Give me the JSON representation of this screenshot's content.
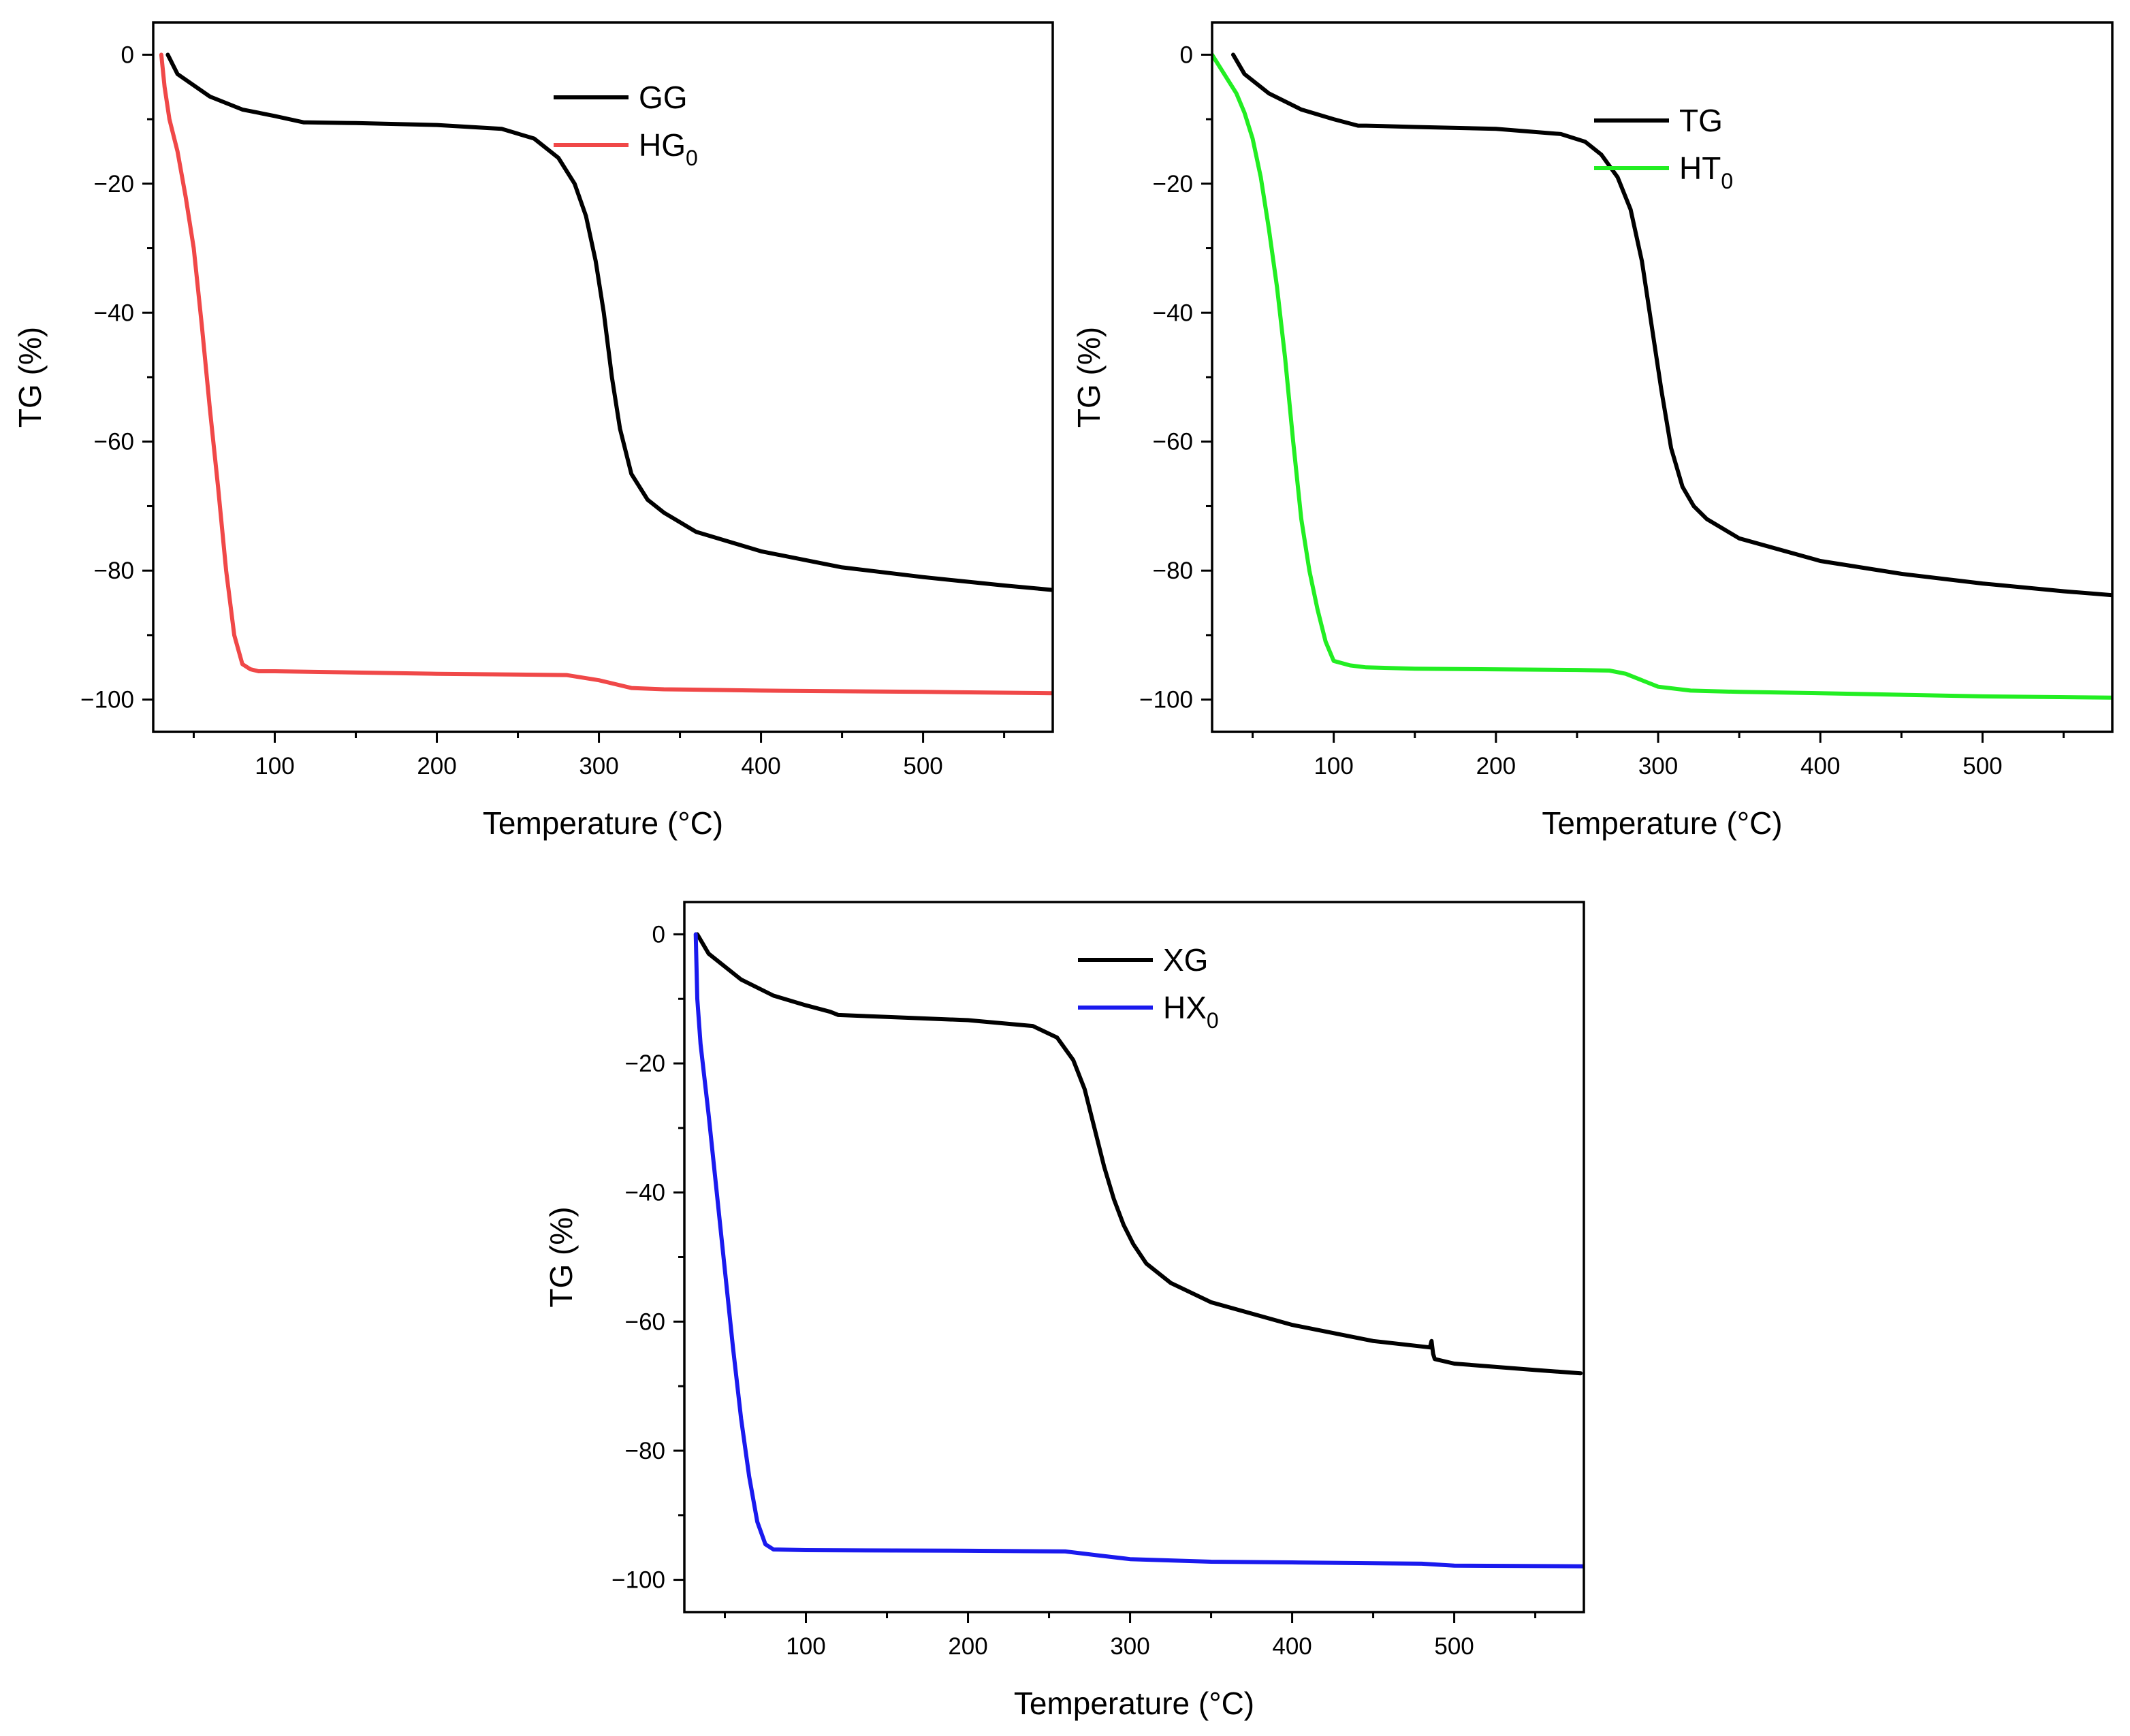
{
  "chart_data": [
    {
      "type": "line",
      "xlabel": "Temperature (°C)",
      "ylabel": "TG (%)",
      "xlim": [
        25,
        580
      ],
      "ylim": [
        -105,
        5
      ],
      "x_ticks": [
        100,
        200,
        300,
        400,
        500
      ],
      "y_ticks": [
        0,
        -20,
        -40,
        -60,
        -80,
        -100
      ],
      "legend_position": "top-center",
      "series": [
        {
          "name": "GG",
          "name_sub": "",
          "color": "#000000",
          "x": [
            34,
            40,
            60,
            80,
            100,
            118,
            120,
            150,
            200,
            240,
            260,
            275,
            285,
            292,
            298,
            303,
            308,
            313,
            320,
            330,
            340,
            360,
            400,
            450,
            500,
            550,
            580
          ],
          "y": [
            0,
            -3,
            -6.5,
            -8.5,
            -9.5,
            -10.5,
            -10.5,
            -10.6,
            -10.9,
            -11.5,
            -13,
            -16,
            -20,
            -25,
            -32,
            -40,
            -50,
            -58,
            -65,
            -69,
            -71,
            -74,
            -77,
            -79.5,
            -81,
            -82.3,
            -83
          ]
        },
        {
          "name": "HG",
          "name_sub": "0",
          "color": "#f04848",
          "x": [
            30,
            32,
            35,
            40,
            45,
            50,
            55,
            60,
            65,
            70,
            75,
            80,
            85,
            90,
            100,
            200,
            280,
            300,
            320,
            340,
            400,
            500,
            580
          ],
          "y": [
            0,
            -5,
            -10,
            -15,
            -22,
            -30,
            -42,
            -55,
            -67,
            -80,
            -90,
            -94.5,
            -95.3,
            -95.6,
            -95.6,
            -96,
            -96.2,
            -97,
            -98.2,
            -98.4,
            -98.6,
            -98.8,
            -99
          ]
        }
      ]
    },
    {
      "type": "line",
      "xlabel": "Temperature (°C)",
      "ylabel": "TG (%)",
      "xlim": [
        25,
        580
      ],
      "ylim": [
        -105,
        5
      ],
      "x_ticks": [
        100,
        200,
        300,
        400,
        500
      ],
      "y_ticks": [
        0,
        -20,
        -40,
        -60,
        -80,
        -100
      ],
      "legend_position": "top-right",
      "series": [
        {
          "name": "TG",
          "name_sub": "",
          "color": "#000000",
          "x": [
            38,
            45,
            60,
            80,
            100,
            115,
            120,
            150,
            200,
            240,
            255,
            265,
            275,
            283,
            290,
            296,
            302,
            308,
            315,
            322,
            330,
            350,
            400,
            450,
            500,
            550,
            580
          ],
          "y": [
            0,
            -3,
            -6,
            -8.5,
            -10,
            -11,
            -11,
            -11.2,
            -11.5,
            -12.3,
            -13.5,
            -15.5,
            -19,
            -24,
            -32,
            -42,
            -52,
            -61,
            -67,
            -70,
            -72,
            -75,
            -78.5,
            -80.5,
            -82,
            -83.2,
            -83.8
          ]
        },
        {
          "name": "HT",
          "name_sub": "0",
          "color": "#22ee22",
          "x": [
            25,
            30,
            35,
            40,
            45,
            50,
            55,
            60,
            65,
            70,
            75,
            80,
            85,
            90,
            95,
            100,
            110,
            120,
            150,
            250,
            270,
            280,
            290,
            300,
            320,
            350,
            400,
            500,
            580
          ],
          "y": [
            0,
            -2,
            -4,
            -6,
            -9,
            -13,
            -19,
            -27,
            -36,
            -47,
            -60,
            -72,
            -80,
            -86,
            -91,
            -94,
            -94.7,
            -95,
            -95.2,
            -95.4,
            -95.5,
            -96,
            -97,
            -98,
            -98.6,
            -98.8,
            -99,
            -99.5,
            -99.7
          ]
        }
      ]
    },
    {
      "type": "line",
      "xlabel": "Temperature (°C)",
      "ylabel": "TG (%)",
      "xlim": [
        25,
        580
      ],
      "ylim": [
        -105,
        5
      ],
      "x_ticks": [
        100,
        200,
        300,
        400,
        500
      ],
      "y_ticks": [
        0,
        -20,
        -40,
        -60,
        -80,
        -100
      ],
      "legend_position": "top-right",
      "series": [
        {
          "name": "XG",
          "name_sub": "",
          "color": "#000000",
          "x": [
            33,
            40,
            60,
            80,
            100,
            115,
            120,
            150,
            200,
            240,
            255,
            265,
            272,
            278,
            284,
            290,
            296,
            302,
            310,
            325,
            350,
            400,
            450,
            485,
            486,
            487,
            488,
            500,
            550,
            578
          ],
          "y": [
            0,
            -3,
            -7,
            -9.5,
            -11,
            -12,
            -12.5,
            -12.8,
            -13.3,
            -14.2,
            -16,
            -19.5,
            -24,
            -30,
            -36,
            -41,
            -45,
            -48,
            -51,
            -54,
            -57,
            -60.5,
            -63,
            -64,
            -63,
            -65,
            -65.8,
            -66.5,
            -67.5,
            -68
          ]
        },
        {
          "name": "HX",
          "name_sub": "0",
          "color": "#1a1aee",
          "x": [
            32,
            33,
            35,
            40,
            45,
            50,
            55,
            60,
            65,
            70,
            75,
            80,
            100,
            200,
            260,
            280,
            300,
            350,
            400,
            480,
            500,
            580
          ],
          "y": [
            0,
            -10,
            -17,
            -28,
            -40,
            -52,
            -64,
            -75,
            -84,
            -91,
            -94.5,
            -95.3,
            -95.4,
            -95.5,
            -95.6,
            -96.2,
            -96.8,
            -97.2,
            -97.3,
            -97.5,
            -97.8,
            -97.9
          ]
        }
      ]
    }
  ]
}
